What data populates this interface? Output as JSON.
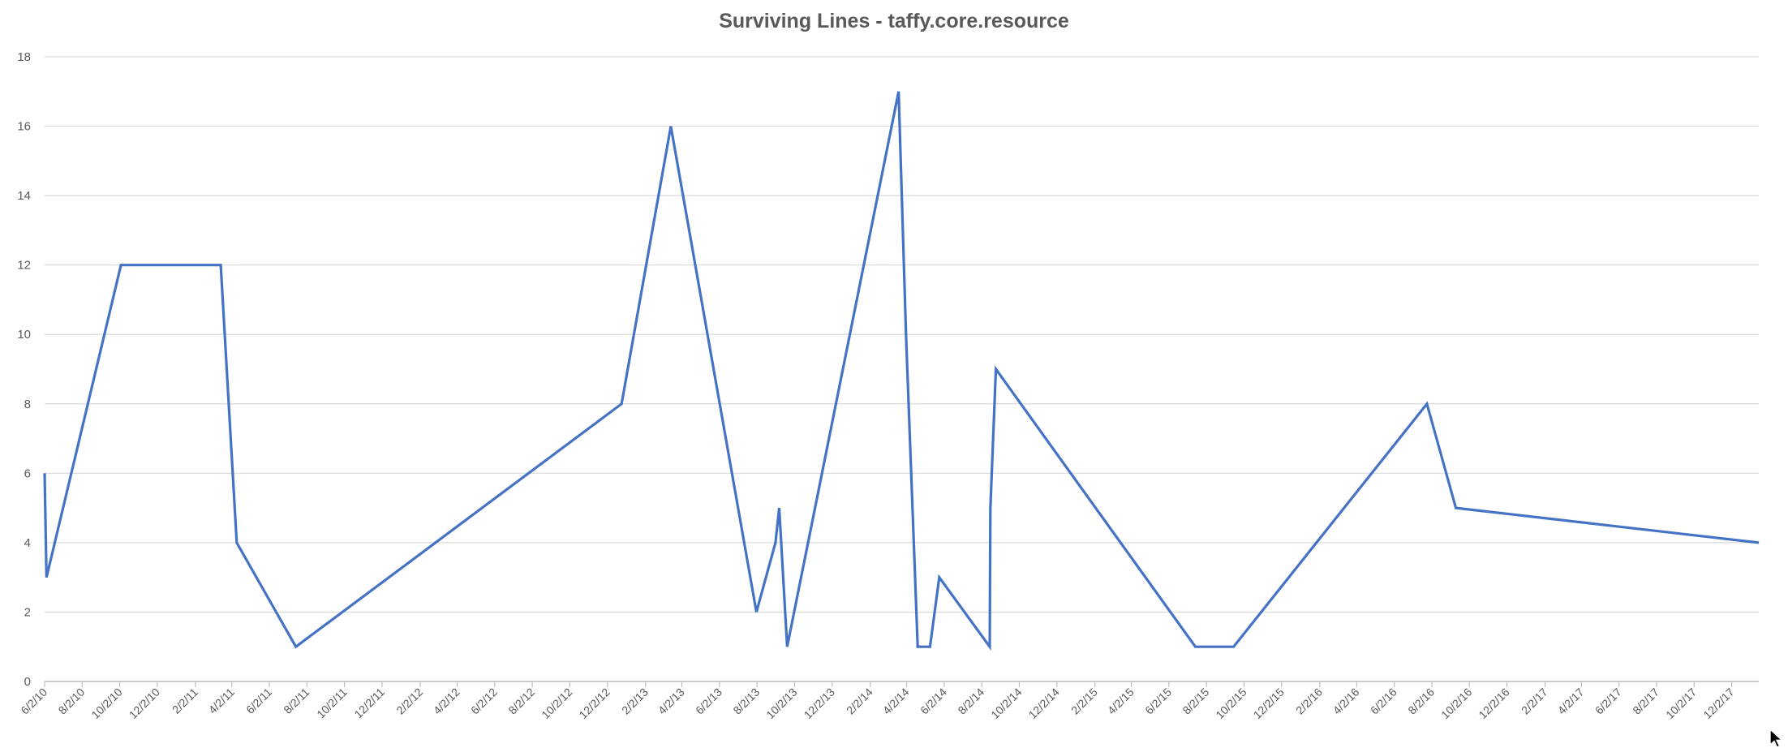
{
  "chart_data": {
    "type": "line",
    "title": "Surviving Lines - taffy.core.resource",
    "xlabel": "",
    "ylabel": "",
    "ylim": [
      0,
      18
    ],
    "yticks": [
      0,
      2,
      4,
      6,
      8,
      10,
      12,
      14,
      16,
      18
    ],
    "xlim": [
      "2010-06-02",
      "2018-01-15"
    ],
    "xtick_labels": [
      "6/2/10",
      "8/2/10",
      "10/2/10",
      "12/2/10",
      "2/2/11",
      "4/2/11",
      "6/2/11",
      "8/2/11",
      "10/2/11",
      "12/2/11",
      "2/2/12",
      "4/2/12",
      "6/2/12",
      "8/2/12",
      "10/2/12",
      "12/2/12",
      "2/2/13",
      "4/2/13",
      "6/2/13",
      "8/2/13",
      "10/2/13",
      "12/2/13",
      "2/2/14",
      "4/2/14",
      "6/2/14",
      "8/2/14",
      "10/2/14",
      "12/2/14",
      "2/2/15",
      "4/2/15",
      "6/2/15",
      "8/2/15",
      "10/2/15",
      "12/2/15",
      "2/2/16",
      "4/2/16",
      "6/2/16",
      "8/2/16",
      "10/2/16",
      "12/2/16",
      "2/2/17",
      "4/2/17",
      "6/2/17",
      "8/2/17",
      "10/2/17",
      "12/2/17"
    ],
    "grid": true,
    "legend": "none",
    "color": "#4472C4",
    "series": [
      {
        "points": [
          {
            "x": "2010-06-02",
            "y": 6
          },
          {
            "x": "2010-06-05",
            "y": 3
          },
          {
            "x": "2010-10-04",
            "y": 12
          },
          {
            "x": "2011-03-15",
            "y": 12
          },
          {
            "x": "2011-04-10",
            "y": 4
          },
          {
            "x": "2011-07-15",
            "y": 1
          },
          {
            "x": "2012-12-25",
            "y": 8
          },
          {
            "x": "2013-03-15",
            "y": 16
          },
          {
            "x": "2013-08-01",
            "y": 2
          },
          {
            "x": "2013-09-01",
            "y": 4
          },
          {
            "x": "2013-09-07",
            "y": 5
          },
          {
            "x": "2013-09-20",
            "y": 1
          },
          {
            "x": "2014-03-20",
            "y": 17
          },
          {
            "x": "2014-04-01",
            "y": 10
          },
          {
            "x": "2014-04-20",
            "y": 1
          },
          {
            "x": "2014-05-10",
            "y": 1
          },
          {
            "x": "2014-05-25",
            "y": 3
          },
          {
            "x": "2014-08-15",
            "y": 1
          },
          {
            "x": "2014-08-16",
            "y": 5
          },
          {
            "x": "2014-08-25",
            "y": 9
          },
          {
            "x": "2015-07-15",
            "y": 1
          },
          {
            "x": "2015-09-15",
            "y": 1
          },
          {
            "x": "2016-07-25",
            "y": 8
          },
          {
            "x": "2016-09-10",
            "y": 5
          },
          {
            "x": "2018-01-15",
            "y": 4
          }
        ]
      }
    ]
  }
}
